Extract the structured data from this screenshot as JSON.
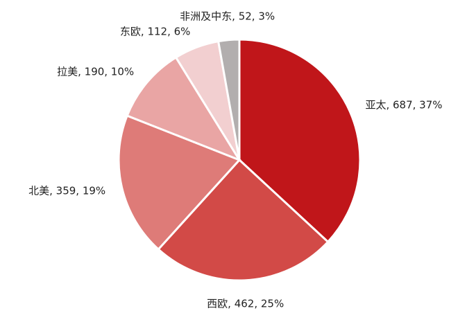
{
  "chart_data": {
    "type": "pie",
    "values": [
      687,
      462,
      359,
      190,
      112,
      52
    ],
    "value_labels": [
      "亚太, 687, 37%",
      "西欧, 462, 25%",
      "北美, 359, 19%",
      "拉美, 190, 10%",
      "东欧, 112, 6%",
      "非洲及中东, 52, 3%"
    ],
    "colors": [
      "#c0161a",
      "#d24a47",
      "#de7b78",
      "#e9a5a4",
      "#f2cfd0",
      "#b2aeae"
    ]
  }
}
